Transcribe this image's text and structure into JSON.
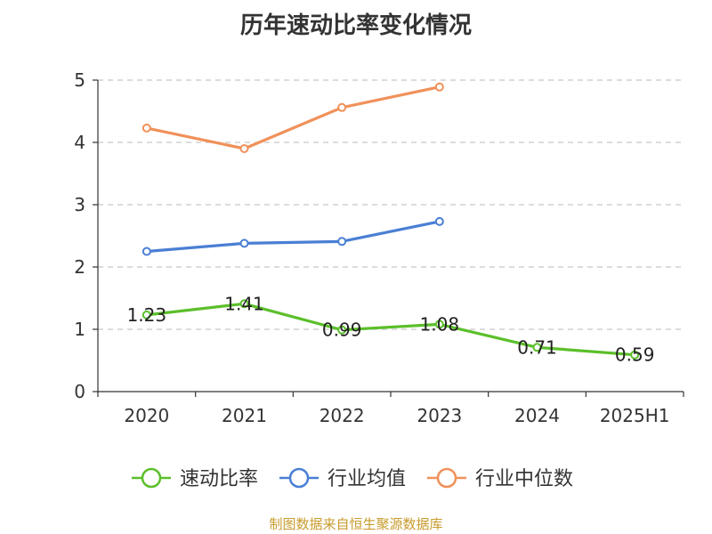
{
  "chart_data": {
    "type": "line",
    "title": "历年速动比率变化情况",
    "categories": [
      "2020",
      "2021",
      "2022",
      "2023",
      "2024",
      "2025H1"
    ],
    "ylim": [
      0,
      5
    ],
    "yticks": [
      "0",
      "1",
      "2",
      "3",
      "4",
      "5"
    ],
    "grid": true,
    "legend_position": "bottom",
    "series": [
      {
        "name": "速动比率",
        "color": "#5bbf2a",
        "values": [
          1.23,
          1.41,
          0.99,
          1.08,
          0.71,
          0.59
        ],
        "labels": [
          "1.23",
          "1.41",
          "0.99",
          "1.08",
          "0.71",
          "0.59"
        ],
        "show_labels": true
      },
      {
        "name": "行业均值",
        "color": "#4a7fd4",
        "values": [
          2.25,
          2.38,
          2.41,
          2.73,
          null,
          null
        ],
        "show_labels": false
      },
      {
        "name": "行业中位数",
        "color": "#f0915a",
        "values": [
          4.23,
          3.9,
          4.56,
          4.89,
          null,
          null
        ],
        "show_labels": false
      }
    ]
  },
  "footer": "制图数据来自恒生聚源数据库"
}
